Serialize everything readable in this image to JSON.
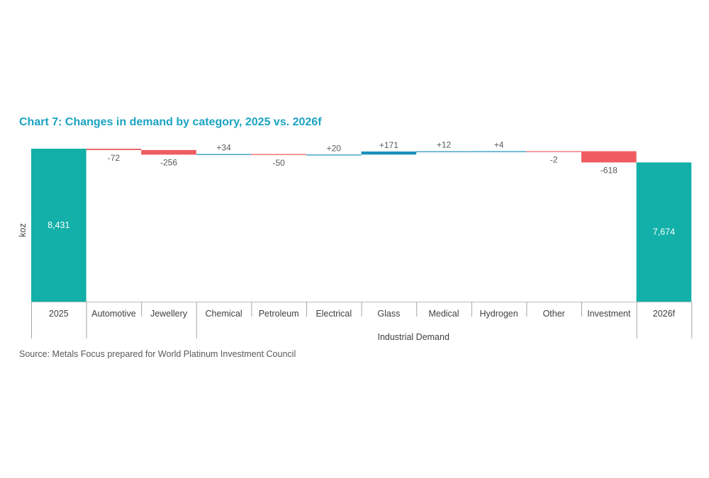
{
  "title": "Chart 7: Changes in demand by category, 2025 vs. 2026f",
  "source": "Source: Metals Focus prepared for World Platinum Investment Council",
  "chart_data": {
    "type": "waterfall",
    "ylabel": "koz",
    "group_label": "Industrial Demand",
    "colors": {
      "total": "#12b0a8",
      "increase": "#1a8fbd",
      "decrease": "#ee5c62"
    },
    "categories": [
      "2025",
      "Automotive",
      "Jewellery",
      "Chemical",
      "Petroleum",
      "Electrical",
      "Glass",
      "Medical",
      "Hydrogen",
      "Other",
      "Investment",
      "2026f"
    ],
    "values": [
      8431,
      -72,
      -256,
      34,
      -50,
      20,
      171,
      12,
      4,
      -2,
      -618,
      7674
    ],
    "labels": [
      "8,431",
      "-72",
      "-256",
      "+34",
      "-50",
      "+20",
      "+171",
      "+12",
      "+4",
      "-2",
      "-618",
      "7,674"
    ],
    "kinds": [
      "total",
      "delta",
      "delta",
      "delta",
      "delta",
      "delta",
      "delta",
      "delta",
      "delta",
      "delta",
      "delta",
      "total"
    ]
  }
}
